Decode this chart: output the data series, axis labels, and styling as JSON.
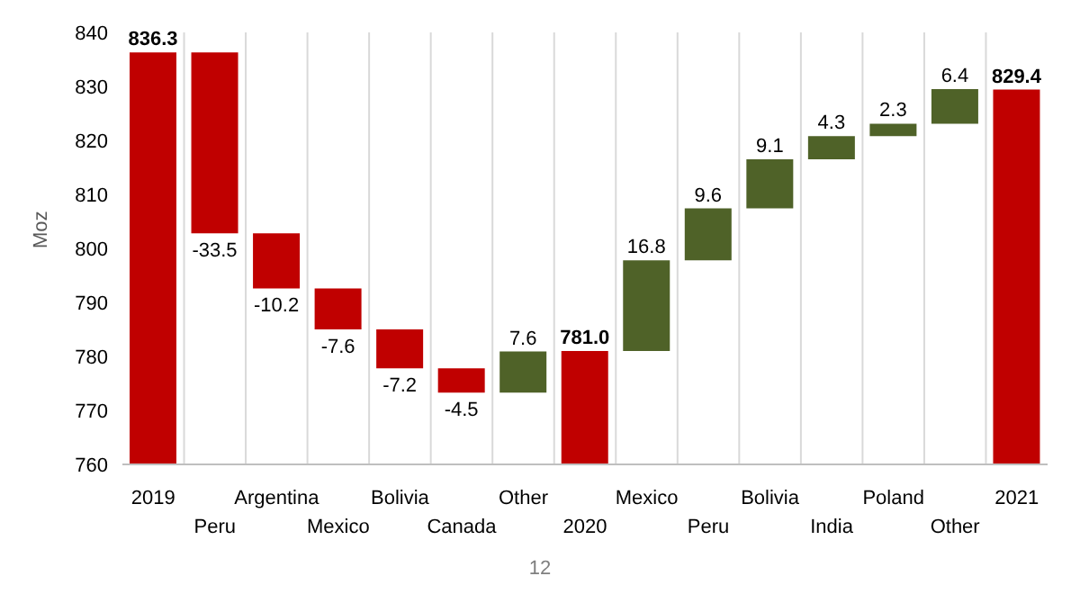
{
  "chart_data": {
    "type": "bar",
    "ylabel": "Moz",
    "categories": [
      "2019",
      "Peru",
      "Argentina",
      "Mexico",
      "Bolivia",
      "Canada",
      "Other",
      "2020",
      "Mexico",
      "Peru",
      "Bolivia",
      "India",
      "Poland",
      "Other",
      "2021"
    ],
    "base": [
      760,
      836.3,
      802.8,
      792.6,
      785.0,
      777.8,
      773.3,
      760,
      781.0,
      797.8,
      807.4,
      816.5,
      820.8,
      823.1,
      760
    ],
    "values": [
      76.3,
      -33.5,
      -10.2,
      -7.6,
      -7.2,
      -4.5,
      7.6,
      21.0,
      16.8,
      9.6,
      9.1,
      4.3,
      2.3,
      6.4,
      69.4
    ],
    "value_labels": [
      "836.3",
      "-33.5",
      "-10.2",
      "-7.6",
      "-7.2",
      "-4.5",
      "7.6",
      "781.0",
      "16.8",
      "9.6",
      "9.1",
      "4.3",
      "2.3",
      "6.4",
      "829.4"
    ],
    "colors": [
      "#c00000",
      "#c00000",
      "#c00000",
      "#c00000",
      "#c00000",
      "#c00000",
      "#4f6228",
      "#c00000",
      "#4f6228",
      "#4f6228",
      "#4f6228",
      "#4f6228",
      "#4f6228",
      "#4f6228",
      "#c00000"
    ],
    "ylim": [
      760,
      840
    ],
    "yticks": [
      760,
      770,
      780,
      790,
      800,
      810,
      820,
      830,
      840
    ],
    "grid": "x",
    "annotations": [
      "12"
    ]
  }
}
